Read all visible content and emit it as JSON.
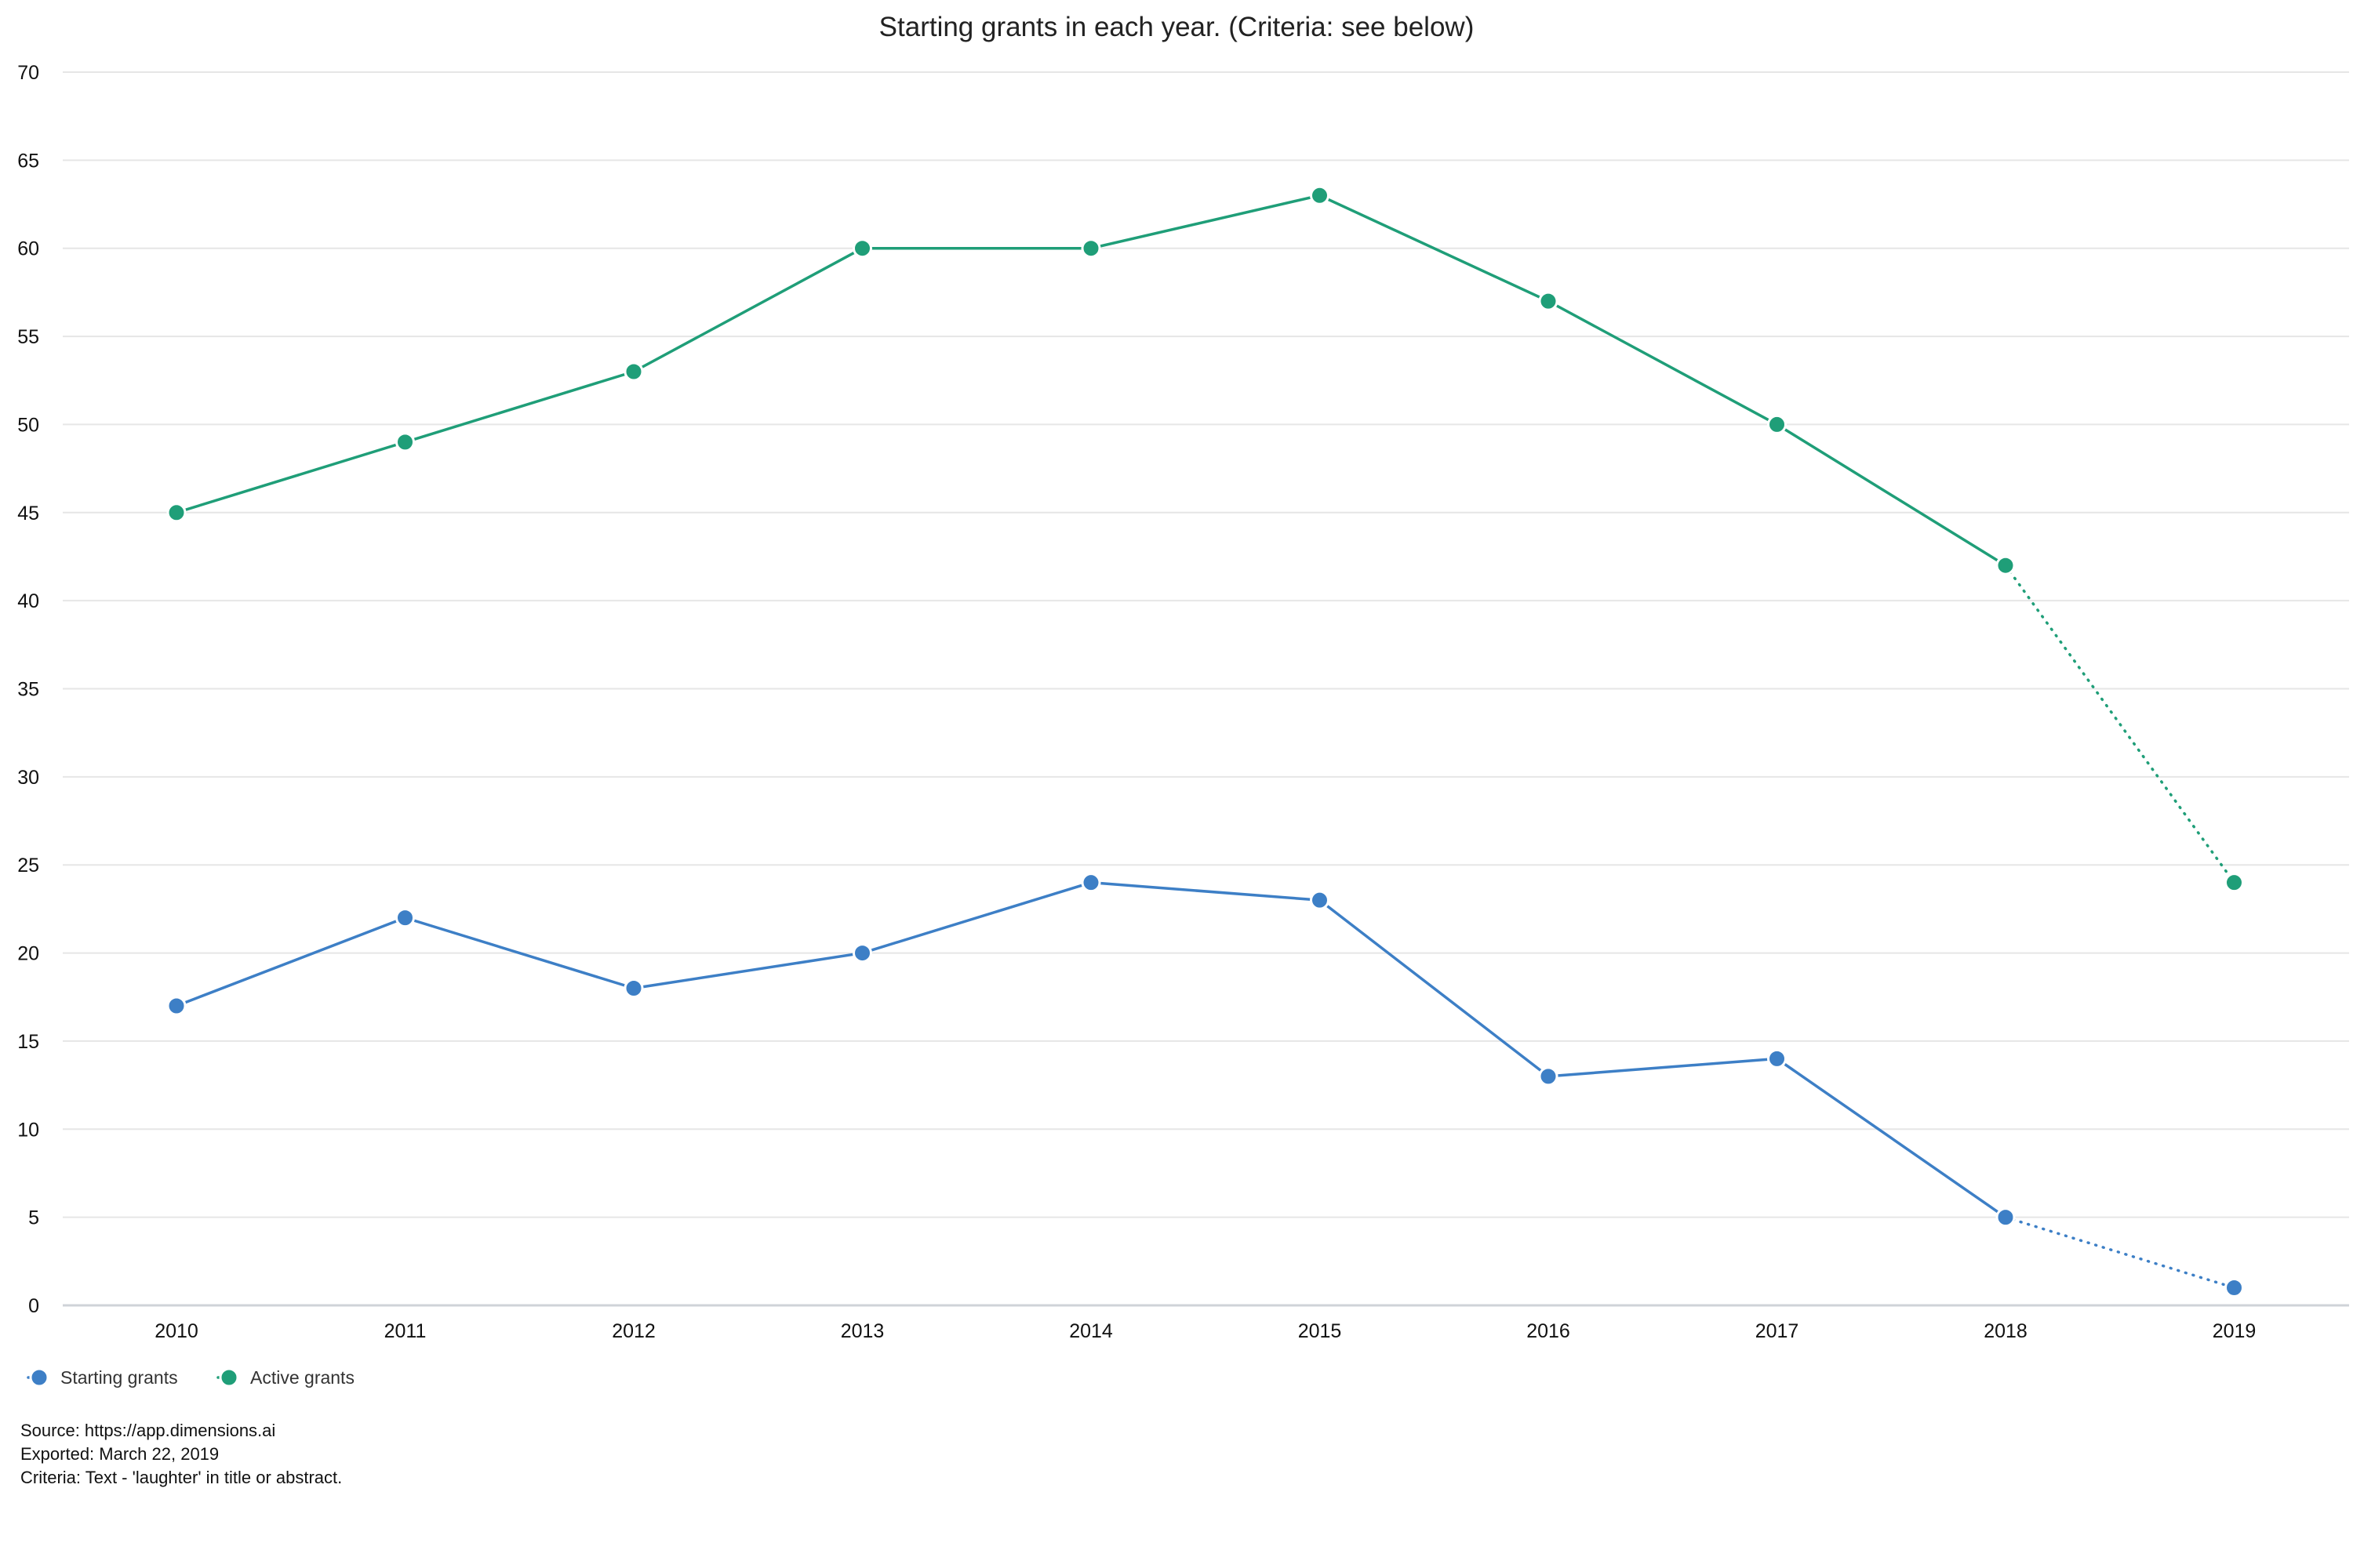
{
  "chart_data": {
    "type": "line",
    "title": "Starting grants in each year. (Criteria: see below)",
    "categories": [
      "2010",
      "2011",
      "2012",
      "2013",
      "2014",
      "2015",
      "2016",
      "2017",
      "2018",
      "2019"
    ],
    "y_ticks": [
      "0",
      "5",
      "10",
      "15",
      "20",
      "25",
      "30",
      "35",
      "40",
      "45",
      "50",
      "55",
      "60",
      "65",
      "70"
    ],
    "ylim": [
      0,
      70
    ],
    "grid": "horizontal",
    "legend_position": "bottom-left",
    "series": [
      {
        "name": "Starting grants",
        "color": "#3d7fc6",
        "values": [
          17,
          22,
          18,
          20,
          24,
          23,
          13,
          14,
          5,
          1
        ],
        "dotted_segments": [
          "2018-2019"
        ]
      },
      {
        "name": "Active grants",
        "color": "#1f9e78",
        "values": [
          45,
          49,
          53,
          60,
          60,
          63,
          57,
          50,
          42,
          24
        ],
        "dotted_segments": [
          "2018-2019"
        ]
      }
    ]
  },
  "footer": {
    "source": "Source: https://app.dimensions.ai",
    "exported": "Exported: March 22, 2019",
    "criteria": "Criteria: Text - 'laughter' in title or abstract."
  }
}
